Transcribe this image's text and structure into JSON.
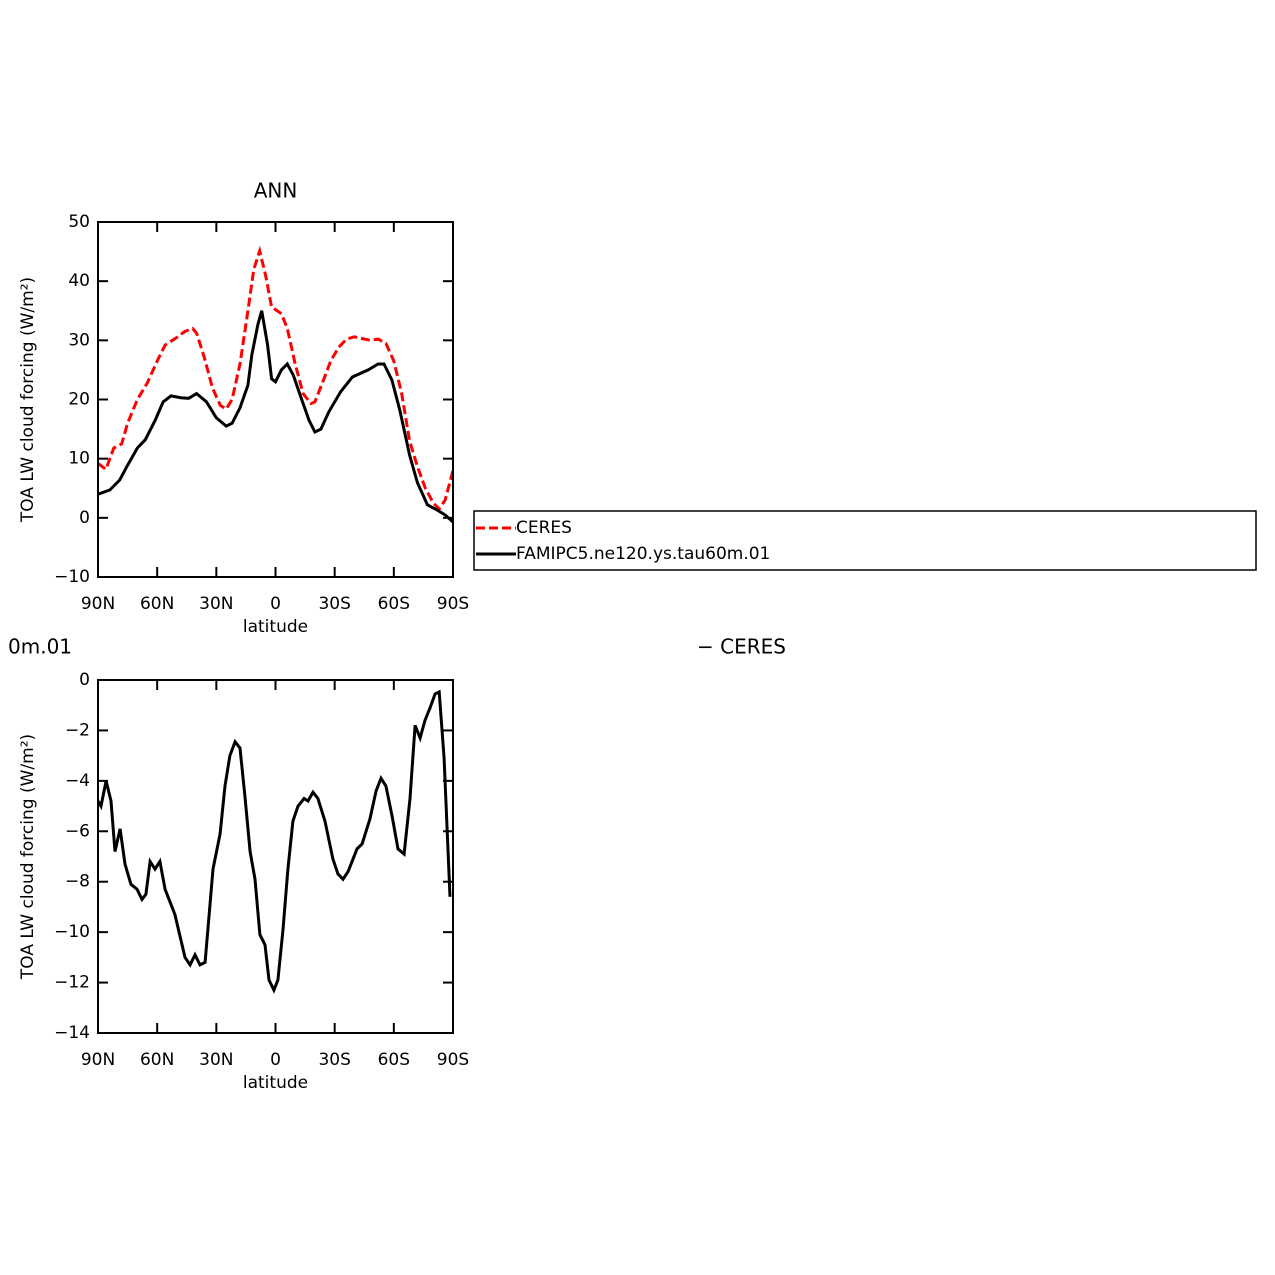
{
  "chart_data": [
    {
      "type": "line",
      "title": "ANN",
      "x_label": "latitude",
      "y_label": "TOA LW cloud forcing (W/m²)",
      "xlim": [
        90,
        -90
      ],
      "ylim": [
        -10,
        50
      ],
      "xticks": [
        {
          "value": 90,
          "label": "90N"
        },
        {
          "value": 60,
          "label": "60N"
        },
        {
          "value": 30,
          "label": "30N"
        },
        0,
        {
          "value": -30,
          "label": "30S"
        },
        {
          "value": -60,
          "label": "60S"
        },
        {
          "value": -90,
          "label": "90S"
        }
      ],
      "yticks": [
        {
          "value": -10,
          "label": "−10"
        },
        0,
        10,
        20,
        30,
        40,
        50
      ],
      "legend": "right",
      "series": [
        {
          "name": "CERES",
          "color": "#ff0000",
          "dashed": true,
          "x": [
            90,
            86,
            82,
            78,
            75,
            70,
            65,
            60,
            56,
            50,
            46,
            42,
            40,
            36,
            32,
            28,
            25,
            22,
            18,
            14,
            11,
            8,
            5,
            2,
            0,
            -3,
            -6,
            -10,
            -14,
            -18,
            -20,
            -24,
            -28,
            -32,
            -36,
            -40,
            -44,
            -48,
            -52,
            -56,
            -60,
            -64,
            -68,
            -72,
            -76,
            -80,
            -83,
            -86,
            -90
          ],
          "values": [
            9.2,
            8.2,
            11.8,
            12.5,
            16,
            20,
            22.8,
            26.5,
            29.2,
            30.5,
            31.5,
            32,
            31.2,
            27,
            22,
            19,
            18.4,
            20,
            26,
            35,
            42,
            45.1,
            41,
            35.6,
            35.2,
            34.5,
            32,
            26,
            21,
            19.3,
            19.6,
            23,
            26.5,
            28.8,
            30.2,
            30.6,
            30.3,
            30,
            30.2,
            29.5,
            26.5,
            21,
            13,
            8.6,
            5,
            2.5,
            1.5,
            3,
            8
          ]
        },
        {
          "name": "FAMIPC5.ne120.ys.tau60m.01",
          "color": "#000000",
          "dashed": false,
          "x": [
            90,
            84,
            79,
            75,
            70,
            66,
            61,
            57,
            53,
            48,
            44,
            40,
            35,
            30,
            25,
            22,
            18,
            14,
            12,
            9,
            7,
            4,
            2,
            0,
            -3,
            -6,
            -9,
            -13,
            -17,
            -20,
            -23,
            -27,
            -33,
            -39,
            -47,
            -52,
            -55,
            -59,
            -63,
            -68,
            -72,
            -77,
            -82,
            -86,
            -90
          ],
          "values": [
            4,
            4.7,
            6.4,
            8.9,
            11.8,
            13.2,
            16.5,
            19.6,
            20.6,
            20.3,
            20.2,
            21,
            19.6,
            16.9,
            15.5,
            16,
            18.6,
            22.4,
            27.5,
            32.6,
            35,
            29.2,
            23.5,
            23,
            25,
            26,
            24.1,
            20.3,
            16.5,
            14.5,
            15,
            17.9,
            21.3,
            23.8,
            25,
            26,
            26,
            23.3,
            18.2,
            10.6,
            5.9,
            2.2,
            1.3,
            0.5,
            -0.7
          ]
        }
      ]
    },
    {
      "type": "line",
      "annotations": [
        "0m.01",
        "− CERES"
      ],
      "x_label": "latitude",
      "y_label": "TOA LW cloud forcing (W/m²)",
      "xlim": [
        90,
        -90
      ],
      "ylim": [
        -14,
        0
      ],
      "xticks": [
        {
          "value": 90,
          "label": "90N"
        },
        {
          "value": 60,
          "label": "60N"
        },
        {
          "value": 30,
          "label": "30N"
        },
        0,
        {
          "value": -30,
          "label": "30S"
        },
        {
          "value": -60,
          "label": "60S"
        },
        {
          "value": -90,
          "label": "90S"
        }
      ],
      "yticks": [
        {
          "value": -14,
          "label": "−14"
        },
        {
          "value": -12,
          "label": "−12"
        },
        {
          "value": -10,
          "label": "−10"
        },
        {
          "value": -8,
          "label": "−8"
        },
        {
          "value": -6,
          "label": "−6"
        },
        {
          "value": -4,
          "label": "−4"
        },
        {
          "value": -2,
          "label": "−2"
        },
        0
      ],
      "color": "#000000",
      "x": [
        90,
        88.5,
        85.9,
        83.4,
        81.4,
        78.8,
        76.3,
        73.3,
        70.2,
        67.7,
        65.7,
        63.6,
        61.1,
        58.6,
        56,
        51,
        45.9,
        43.3,
        40.8,
        38.3,
        35.7,
        31.7,
        28.1,
        25.6,
        23.1,
        20.5,
        18,
        15.5,
        12.9,
        10.4,
        7.9,
        5.3,
        3.3,
        0.8,
        -1.2,
        -3.8,
        -6.3,
        -8.8,
        -11.4,
        -14.5,
        -16.5,
        -19,
        -21.5,
        -25.1,
        -29.1,
        -31.7,
        -34.2,
        -36.8,
        -41.3,
        -43.9,
        -47.9,
        -51,
        -53.5,
        -56,
        -59.1,
        -62.1,
        -65.2,
        -68.2,
        -70.8,
        -73.3,
        -75.8,
        -78.4,
        -80.9,
        -83,
        -85.5,
        -88.5
      ],
      "values": [
        -4.8,
        -5,
        -4,
        -4.8,
        -6.8,
        -5.9,
        -7.3,
        -8.1,
        -8.3,
        -8.7,
        -8.5,
        -7.2,
        -7.5,
        -7.2,
        -8.3,
        -9.3,
        -11,
        -11.3,
        -10.9,
        -11.3,
        -11.2,
        -7.5,
        -6.1,
        -4.2,
        -3,
        -2.45,
        -2.7,
        -4.6,
        -6.8,
        -7.9,
        -10.1,
        -10.5,
        -11.9,
        -12.3,
        -11.9,
        -9.9,
        -7.5,
        -5.6,
        -5,
        -4.7,
        -4.8,
        -4.45,
        -4.7,
        -5.6,
        -7.1,
        -7.7,
        -7.9,
        -7.6,
        -6.7,
        -6.5,
        -5.5,
        -4.4,
        -3.9,
        -4.2,
        -5.4,
        -6.7,
        -6.9,
        -4.7,
        -1.8,
        -2.3,
        -1.6,
        -1.1,
        -0.55,
        -0.47,
        -3.1,
        -8.6
      ]
    }
  ]
}
